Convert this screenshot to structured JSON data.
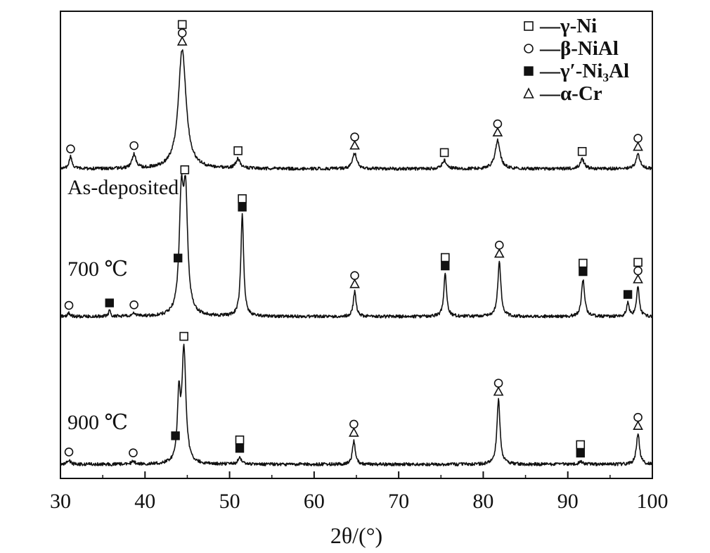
{
  "chart_data": {
    "type": "line",
    "title": "",
    "xlabel": "2θ/(°)",
    "ylabel": "",
    "xlim": [
      30,
      100
    ],
    "x_ticks": [
      "30",
      "40",
      "50",
      "60",
      "70",
      "80",
      "90",
      "100"
    ],
    "grid": false,
    "legend_position": "top-right",
    "legend": [
      {
        "symbol": "open-square",
        "label": "—γ-Ni"
      },
      {
        "symbol": "open-circle",
        "label": "—β-NiAl"
      },
      {
        "symbol": "filled-square",
        "label": "—γ′-Ni₃Al"
      },
      {
        "symbol": "open-triangle",
        "label": "—α-Cr"
      }
    ],
    "series": [
      {
        "name": "As-deposited",
        "peaks": [
          {
            "x": 31.2,
            "h": 0.1,
            "w": 0.2
          },
          {
            "x": 38.7,
            "h": 0.12,
            "w": 0.25
          },
          {
            "x": 44.4,
            "h": 1.0,
            "w": 0.55
          },
          {
            "x": 51.0,
            "h": 0.08,
            "w": 0.3
          },
          {
            "x": 64.8,
            "h": 0.13,
            "w": 0.3
          },
          {
            "x": 75.4,
            "h": 0.07,
            "w": 0.3
          },
          {
            "x": 81.7,
            "h": 0.24,
            "w": 0.35
          },
          {
            "x": 91.7,
            "h": 0.08,
            "w": 0.3
          },
          {
            "x": 98.3,
            "h": 0.12,
            "w": 0.3
          }
        ],
        "markers": [
          {
            "x": 31.2,
            "symbols": [
              "circle"
            ]
          },
          {
            "x": 38.7,
            "symbols": [
              "circle"
            ]
          },
          {
            "x": 44.4,
            "symbols": [
              "triangle",
              "circle",
              "square"
            ]
          },
          {
            "x": 51.0,
            "symbols": [
              "square"
            ]
          },
          {
            "x": 64.8,
            "symbols": [
              "triangle",
              "circle"
            ]
          },
          {
            "x": 75.4,
            "symbols": [
              "square"
            ]
          },
          {
            "x": 81.7,
            "symbols": [
              "triangle",
              "circle"
            ]
          },
          {
            "x": 91.7,
            "symbols": [
              "square"
            ]
          },
          {
            "x": 98.3,
            "symbols": [
              "triangle",
              "circle"
            ]
          }
        ]
      },
      {
        "name": "700 ℃",
        "peaks": [
          {
            "x": 31.0,
            "h": 0.03,
            "w": 0.2
          },
          {
            "x": 35.8,
            "h": 0.05,
            "w": 0.15
          },
          {
            "x": 38.7,
            "h": 0.03,
            "w": 0.2
          },
          {
            "x": 44.3,
            "h": 0.98,
            "w": 0.3
          },
          {
            "x": 44.8,
            "h": 0.98,
            "w": 0.3
          },
          {
            "x": 51.5,
            "h": 0.9,
            "w": 0.2
          },
          {
            "x": 64.8,
            "h": 0.22,
            "w": 0.2
          },
          {
            "x": 75.5,
            "h": 0.38,
            "w": 0.2
          },
          {
            "x": 81.9,
            "h": 0.49,
            "w": 0.22
          },
          {
            "x": 91.8,
            "h": 0.33,
            "w": 0.22
          },
          {
            "x": 97.1,
            "h": 0.12,
            "w": 0.18
          },
          {
            "x": 98.3,
            "h": 0.26,
            "w": 0.2
          }
        ],
        "markers": [
          {
            "x": 31.0,
            "symbols": [
              "circle"
            ]
          },
          {
            "x": 35.8,
            "symbols": [
              "filled-square"
            ]
          },
          {
            "x": 38.7,
            "symbols": [
              "circle"
            ]
          },
          {
            "x": 43.9,
            "symbols": [
              "filled-square"
            ]
          },
          {
            "x": 44.7,
            "symbols": [
              "square"
            ]
          },
          {
            "x": 51.5,
            "symbols": [
              "filled-square",
              "square"
            ]
          },
          {
            "x": 64.8,
            "symbols": [
              "triangle",
              "circle"
            ]
          },
          {
            "x": 75.5,
            "symbols": [
              "filled-square",
              "square"
            ]
          },
          {
            "x": 81.9,
            "symbols": [
              "triangle",
              "circle"
            ]
          },
          {
            "x": 91.8,
            "symbols": [
              "filled-square",
              "square"
            ]
          },
          {
            "x": 97.1,
            "symbols": [
              "filled-square"
            ]
          },
          {
            "x": 98.3,
            "symbols": [
              "triangle",
              "circle",
              "square"
            ]
          }
        ]
      },
      {
        "name": "900 ℃",
        "peaks": [
          {
            "x": 31.0,
            "h": 0.04,
            "w": 0.2
          },
          {
            "x": 38.6,
            "h": 0.03,
            "w": 0.2
          },
          {
            "x": 44.0,
            "h": 0.55,
            "w": 0.2
          },
          {
            "x": 44.6,
            "h": 1.0,
            "w": 0.28
          },
          {
            "x": 51.2,
            "h": 0.07,
            "w": 0.2
          },
          {
            "x": 64.7,
            "h": 0.21,
            "w": 0.2
          },
          {
            "x": 81.8,
            "h": 0.57,
            "w": 0.22
          },
          {
            "x": 91.5,
            "h": 0.03,
            "w": 0.2
          },
          {
            "x": 98.3,
            "h": 0.27,
            "w": 0.22
          }
        ],
        "markers": [
          {
            "x": 31.0,
            "symbols": [
              "circle"
            ]
          },
          {
            "x": 38.6,
            "symbols": [
              "circle"
            ]
          },
          {
            "x": 43.6,
            "symbols": [
              "filled-square"
            ]
          },
          {
            "x": 44.6,
            "symbols": [
              "square"
            ]
          },
          {
            "x": 51.2,
            "symbols": [
              "filled-square",
              "square"
            ]
          },
          {
            "x": 64.7,
            "symbols": [
              "triangle",
              "circle"
            ]
          },
          {
            "x": 81.8,
            "symbols": [
              "triangle",
              "circle"
            ]
          },
          {
            "x": 91.5,
            "symbols": [
              "filled-square",
              "square"
            ]
          },
          {
            "x": 98.3,
            "symbols": [
              "triangle",
              "circle"
            ]
          }
        ]
      }
    ]
  }
}
